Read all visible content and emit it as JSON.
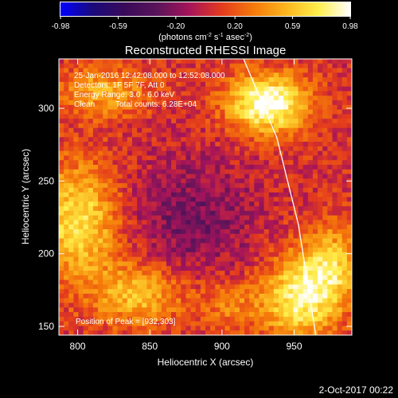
{
  "chart_data": {
    "type": "heatmap",
    "title": "Reconstructed RHESSI Image",
    "xlabel": "Heliocentric X (arcsec)",
    "ylabel": "Heliocentric Y (arcsec)",
    "xlim": [
      787,
      990
    ],
    "ylim": [
      144,
      334
    ],
    "x_ticks": [
      800,
      850,
      900,
      950
    ],
    "y_ticks": [
      150,
      200,
      250,
      300
    ],
    "colorbar": {
      "range": [
        -0.98,
        0.98
      ],
      "tick_values": [
        -0.98,
        -0.59,
        -0.2,
        0.2,
        0.59,
        0.98
      ],
      "tick_labels": [
        "-0.98",
        "-0.59",
        "-0.20",
        "0.20",
        "0.59",
        "0.98"
      ],
      "units_prefix": "(photons cm",
      "units_exp1": "-2",
      "units_mid": " s",
      "units_exp2": "-1",
      "units_mid2": " asec",
      "units_exp3": "-2",
      "units_suffix": ")",
      "colormap": [
        "#0000ff",
        "#1a0a7a",
        "#3a0a5a",
        "#5a145a",
        "#a5145a",
        "#e33a1e",
        "#f57a0a",
        "#fbb51e",
        "#ffee4a",
        "#ffffff"
      ]
    },
    "info": {
      "time_range": "25-Jan-2016 12:42:08.000 to 12:52:08.000",
      "detectors": "Detectors: 1F 5F 7F, Att 0",
      "energy": "Energy Range: 3.0 - 6.0 keV",
      "clean": "Clean",
      "counts": "Total counts: 6.28E+04"
    },
    "peak_label": "Position of Peak = [932,303]",
    "limb": {
      "points": [
        [
          915,
          334
        ],
        [
          938,
          280
        ],
        [
          953,
          220
        ],
        [
          965,
          144
        ]
      ],
      "color": "#ffffff"
    },
    "sources": [
      {
        "x": 932,
        "y": 303,
        "sx": 20,
        "sy": 14,
        "amp": 0.98
      },
      {
        "x": 800,
        "y": 222,
        "sx": 20,
        "sy": 28,
        "amp": 0.7
      },
      {
        "x": 842,
        "y": 172,
        "sx": 22,
        "sy": 15,
        "amp": 0.55
      },
      {
        "x": 952,
        "y": 168,
        "sx": 18,
        "sy": 20,
        "amp": 0.7
      },
      {
        "x": 975,
        "y": 190,
        "sx": 16,
        "sy": 20,
        "amp": 0.6
      },
      {
        "x": 818,
        "y": 312,
        "sx": 22,
        "sy": 12,
        "amp": 0.45
      },
      {
        "x": 905,
        "y": 165,
        "sx": 15,
        "sy": 12,
        "amp": 0.3
      }
    ]
  },
  "footer": {
    "timestamp": "2-Oct-2017 00:22"
  }
}
